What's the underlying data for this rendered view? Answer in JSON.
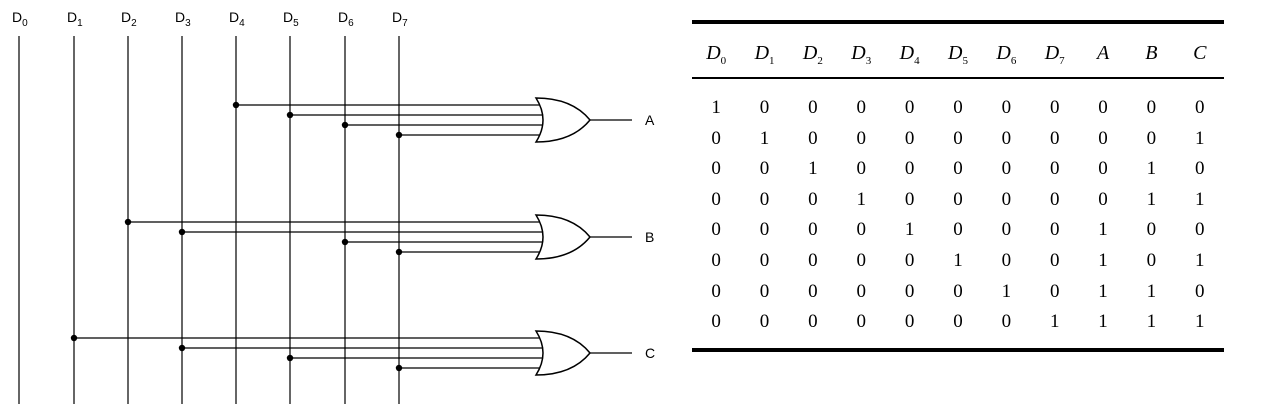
{
  "circuit": {
    "inputs": [
      {
        "base": "D",
        "sub": "0"
      },
      {
        "base": "D",
        "sub": "1"
      },
      {
        "base": "D",
        "sub": "2"
      },
      {
        "base": "D",
        "sub": "3"
      },
      {
        "base": "D",
        "sub": "4"
      },
      {
        "base": "D",
        "sub": "5"
      },
      {
        "base": "D",
        "sub": "6"
      },
      {
        "base": "D",
        "sub": "7"
      }
    ],
    "gates": [
      {
        "output": "A",
        "gate_type": "OR",
        "input_lines": [
          4,
          5,
          6,
          7
        ]
      },
      {
        "output": "B",
        "gate_type": "OR",
        "input_lines": [
          2,
          3,
          6,
          7
        ]
      },
      {
        "output": "C",
        "gate_type": "OR",
        "input_lines": [
          1,
          3,
          5,
          7
        ]
      }
    ]
  },
  "truth_table": {
    "headers": [
      {
        "base": "D",
        "sub": "0"
      },
      {
        "base": "D",
        "sub": "1"
      },
      {
        "base": "D",
        "sub": "2"
      },
      {
        "base": "D",
        "sub": "3"
      },
      {
        "base": "D",
        "sub": "4"
      },
      {
        "base": "D",
        "sub": "5"
      },
      {
        "base": "D",
        "sub": "6"
      },
      {
        "base": "D",
        "sub": "7"
      },
      {
        "base": "A",
        "sub": ""
      },
      {
        "base": "B",
        "sub": ""
      },
      {
        "base": "C",
        "sub": ""
      }
    ],
    "rows": [
      [
        "1",
        "0",
        "0",
        "0",
        "0",
        "0",
        "0",
        "0",
        "0",
        "0",
        "0"
      ],
      [
        "0",
        "1",
        "0",
        "0",
        "0",
        "0",
        "0",
        "0",
        "0",
        "0",
        "1"
      ],
      [
        "0",
        "0",
        "1",
        "0",
        "0",
        "0",
        "0",
        "0",
        "0",
        "1",
        "0"
      ],
      [
        "0",
        "0",
        "0",
        "1",
        "0",
        "0",
        "0",
        "0",
        "0",
        "1",
        "1"
      ],
      [
        "0",
        "0",
        "0",
        "0",
        "1",
        "0",
        "0",
        "0",
        "1",
        "0",
        "0"
      ],
      [
        "0",
        "0",
        "0",
        "0",
        "0",
        "1",
        "0",
        "0",
        "1",
        "0",
        "1"
      ],
      [
        "0",
        "0",
        "0",
        "0",
        "0",
        "0",
        "1",
        "0",
        "1",
        "1",
        "0"
      ],
      [
        "0",
        "0",
        "0",
        "0",
        "0",
        "0",
        "0",
        "1",
        "1",
        "1",
        "1"
      ]
    ]
  }
}
